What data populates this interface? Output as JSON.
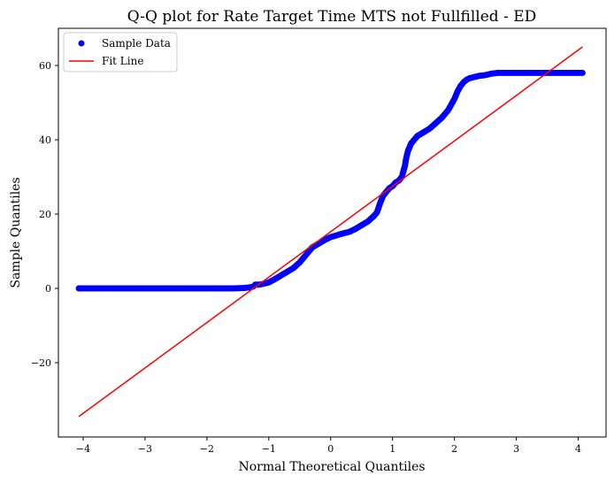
{
  "chart_data": {
    "type": "scatter",
    "title": "Q-Q plot for Rate Target Time MTS not Fullfilled - ED",
    "xlabel": "Normal Theoretical Quantiles",
    "ylabel": "Sample Quantiles",
    "xlim": [
      -4.4,
      4.45
    ],
    "ylim": [
      -40,
      70
    ],
    "xticks": [
      -4,
      -3,
      -2,
      -1,
      0,
      1,
      2,
      3,
      4
    ],
    "xtick_labels": [
      "−4",
      "−3",
      "−2",
      "−1",
      "0",
      "1",
      "2",
      "3",
      "4"
    ],
    "yticks": [
      -20,
      0,
      20,
      40,
      60
    ],
    "ytick_labels": [
      "−20",
      "0",
      "20",
      "40",
      "60"
    ],
    "grid": false,
    "legend": {
      "position": "top-left",
      "entries": [
        {
          "label": "Sample Data",
          "marker": "circle",
          "color": "#0000ff"
        },
        {
          "label": "Fit Line",
          "marker": "line",
          "color": "#ff0000"
        }
      ]
    },
    "series": [
      {
        "name": "Sample Data",
        "kind": "scatter",
        "color": "#0000ff",
        "x": [
          -4.07,
          -3.8,
          -3.68,
          -3.6,
          -3.55,
          -3.5,
          -3.45,
          -3.4,
          -3.3,
          -3.2,
          -3.0,
          -2.8,
          -2.6,
          -2.4,
          -2.2,
          -2.0,
          -1.8,
          -1.6,
          -1.4,
          -1.3,
          -1.25,
          -1.22,
          -1.2,
          -1.15,
          -1.1,
          -1.0,
          -0.9,
          -0.8,
          -0.7,
          -0.6,
          -0.5,
          -0.4,
          -0.3,
          -0.2,
          -0.1,
          0.0,
          0.1,
          0.2,
          0.3,
          0.4,
          0.5,
          0.6,
          0.7,
          0.75,
          0.8,
          0.85,
          0.9,
          0.95,
          1.0,
          1.05,
          1.1,
          1.15,
          1.2,
          1.22,
          1.25,
          1.3,
          1.4,
          1.5,
          1.6,
          1.7,
          1.8,
          1.9,
          2.0,
          2.05,
          2.1,
          2.15,
          2.2,
          2.25,
          2.3,
          2.4,
          2.5,
          2.55,
          2.6,
          2.7,
          2.8,
          3.0,
          3.2,
          3.4,
          3.6,
          3.7,
          3.8,
          3.9,
          4.07
        ],
        "y": [
          0,
          0,
          0,
          0,
          0,
          0,
          0,
          0,
          0,
          0,
          0,
          0,
          0,
          0,
          0,
          0,
          0,
          0,
          0.1,
          0.3,
          0.5,
          1.0,
          1.0,
          1.0,
          1.2,
          1.6,
          2.5,
          3.5,
          4.5,
          5.5,
          7.0,
          9.0,
          11.0,
          12.0,
          13.0,
          13.8,
          14.3,
          14.8,
          15.2,
          16.0,
          17.0,
          18.0,
          19.5,
          20.5,
          23.0,
          25.0,
          26.0,
          27.0,
          27.5,
          28.5,
          29.0,
          30.0,
          33.0,
          35.0,
          37.0,
          39.0,
          41.0,
          42.0,
          43.0,
          44.5,
          46.0,
          48.0,
          51.0,
          53.0,
          54.5,
          55.5,
          56.2,
          56.6,
          56.8,
          57.2,
          57.4,
          57.6,
          57.8,
          58.0,
          58.0,
          58.0,
          58.0,
          58.0,
          58.0,
          58.0,
          58.0,
          58.0,
          58.0
        ]
      },
      {
        "name": "Fit Line",
        "kind": "line",
        "color": "#ff0000",
        "x": [
          -4.07,
          4.07
        ],
        "y": [
          -34.5,
          65.0
        ]
      }
    ]
  }
}
